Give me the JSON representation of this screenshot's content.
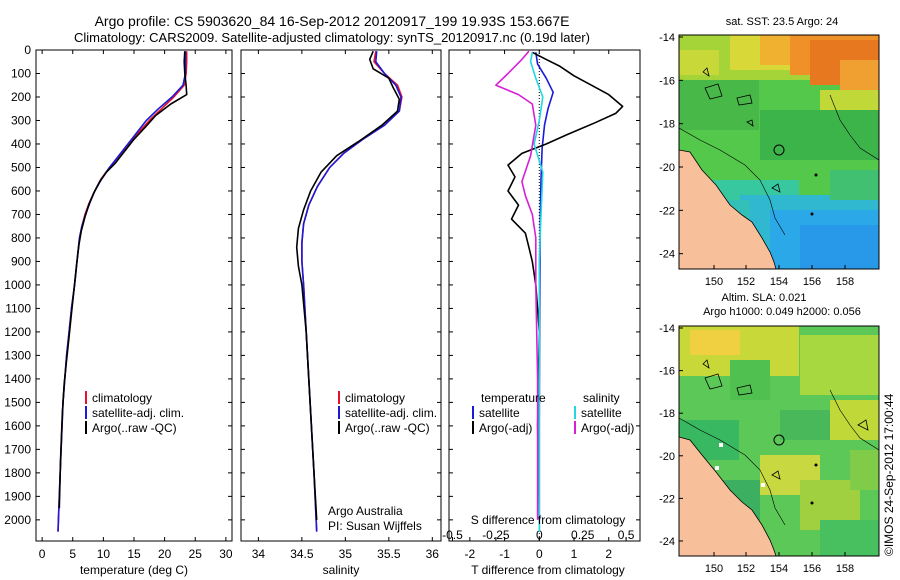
{
  "title_line1": "Argo profile: CS 5903620_84 16-Sep-2012 20120917_199 19.93S 153.667E",
  "title_line2": "Climatology: CARS2009. Satellite-adjusted climatology: synTS_20120917.nc (0.19d later)",
  "colors": {
    "clim": "#e8112d",
    "sat": "#1a1ad8",
    "argo": "#000000",
    "cyan": "#1fd8e0",
    "magenta": "#d81fd8",
    "land": "#f7c09a"
  },
  "chart_data": [
    {
      "type": "line",
      "id": "temperature",
      "xlabel": "temperature (deg C)",
      "ylabel": "",
      "xlim": [
        -1,
        31
      ],
      "ylim": [
        2090,
        0
      ],
      "xticks": [
        0,
        5,
        10,
        15,
        20,
        25,
        30
      ],
      "xtick_labels": [
        "0",
        "5",
        "10",
        "15",
        "20",
        "25",
        "30"
      ],
      "yticks": [
        0,
        100,
        200,
        300,
        400,
        500,
        600,
        700,
        800,
        900,
        1000,
        1100,
        1200,
        1300,
        1400,
        1500,
        1600,
        1700,
        1800,
        1900,
        2000
      ],
      "ytick_labels": [
        "0",
        "100",
        "200",
        "300",
        "400",
        "500",
        "600",
        "700",
        "800",
        "900",
        "1000",
        "1100",
        "1200",
        "1300",
        "1400",
        "1500",
        "1600",
        "1700",
        "1800",
        "1900",
        "2000"
      ],
      "legend": [
        "climatology",
        "satellite-adj. clim.",
        "Argo(..raw -QC)"
      ],
      "series": [
        {
          "name": "climatology",
          "color_key": "clim",
          "points": [
            [
              23.6,
              5
            ],
            [
              23.6,
              50
            ],
            [
              23.5,
              100
            ],
            [
              23.2,
              150
            ],
            [
              21.5,
              200
            ],
            [
              19.5,
              250
            ],
            [
              17.5,
              300
            ],
            [
              15.8,
              350
            ],
            [
              14.2,
              400
            ],
            [
              12.6,
              450
            ],
            [
              11.0,
              500
            ],
            [
              9.6,
              550
            ],
            [
              8.6,
              600
            ],
            [
              7.7,
              650
            ],
            [
              7.0,
              700
            ],
            [
              6.5,
              750
            ],
            [
              6.1,
              800
            ],
            [
              5.7,
              900
            ],
            [
              5.3,
              1000
            ],
            [
              4.8,
              1100
            ],
            [
              4.4,
              1200
            ],
            [
              4.0,
              1300
            ],
            [
              3.7,
              1400
            ],
            [
              3.4,
              1500
            ],
            [
              3.1,
              1700
            ],
            [
              2.8,
              1900
            ],
            [
              2.6,
              2050
            ]
          ]
        },
        {
          "name": "satellite-adj. clim.",
          "color_key": "sat",
          "points": [
            [
              23.4,
              5
            ],
            [
              23.4,
              50
            ],
            [
              23.4,
              100
            ],
            [
              23.0,
              150
            ],
            [
              21.2,
              200
            ],
            [
              19.0,
              250
            ],
            [
              17.0,
              300
            ],
            [
              15.5,
              350
            ],
            [
              14.0,
              400
            ],
            [
              12.5,
              450
            ],
            [
              11.0,
              500
            ],
            [
              9.7,
              550
            ],
            [
              8.6,
              600
            ],
            [
              7.8,
              650
            ],
            [
              7.1,
              700
            ],
            [
              6.5,
              750
            ],
            [
              6.1,
              800
            ],
            [
              5.7,
              900
            ],
            [
              5.3,
              1000
            ],
            [
              4.8,
              1100
            ],
            [
              4.4,
              1200
            ],
            [
              4.0,
              1300
            ],
            [
              3.7,
              1400
            ],
            [
              3.4,
              1500
            ],
            [
              3.1,
              1700
            ],
            [
              2.8,
              1900
            ],
            [
              2.6,
              2050
            ]
          ]
        },
        {
          "name": "Argo(..raw -QC)",
          "color_key": "argo",
          "points": [
            [
              23.3,
              5
            ],
            [
              23.2,
              50
            ],
            [
              23.3,
              100
            ],
            [
              23.5,
              150
            ],
            [
              23.6,
              190
            ],
            [
              21.0,
              230
            ],
            [
              18.5,
              280
            ],
            [
              16.8,
              330
            ],
            [
              15.0,
              380
            ],
            [
              13.5,
              430
            ],
            [
              12.0,
              480
            ],
            [
              10.5,
              520
            ],
            [
              9.4,
              560
            ],
            [
              8.4,
              610
            ],
            [
              7.6,
              660
            ],
            [
              7.0,
              710
            ],
            [
              6.4,
              770
            ],
            [
              6.0,
              830
            ],
            [
              5.6,
              920
            ],
            [
              5.2,
              1020
            ],
            [
              4.8,
              1120
            ],
            [
              4.4,
              1220
            ],
            [
              4.0,
              1320
            ],
            [
              3.6,
              1420
            ],
            [
              3.3,
              1550
            ],
            [
              3.0,
              1750
            ],
            [
              2.8,
              1950
            ]
          ]
        }
      ]
    },
    {
      "type": "line",
      "id": "salinity",
      "xlabel": "salinity",
      "ylabel": "",
      "xlim": [
        33.8,
        36.1
      ],
      "ylim": [
        2090,
        0
      ],
      "xticks": [
        34,
        34.5,
        35,
        35.5,
        36
      ],
      "xtick_labels": [
        "34",
        "34.5",
        "35",
        "35.5",
        "36"
      ],
      "legend": [
        "climatology",
        "satellite-adj. clim.",
        "Argo(..raw -QC)"
      ],
      "annotations": [
        "Argo Australia",
        "PI: Susan Wijffels"
      ],
      "series": [
        {
          "name": "climatology",
          "color_key": "clim",
          "points": [
            [
              35.35,
              5
            ],
            [
              35.33,
              50
            ],
            [
              35.45,
              100
            ],
            [
              35.6,
              150
            ],
            [
              35.65,
              200
            ],
            [
              35.62,
              260
            ],
            [
              35.45,
              320
            ],
            [
              35.2,
              380
            ],
            [
              34.98,
              440
            ],
            [
              34.82,
              500
            ],
            [
              34.68,
              580
            ],
            [
              34.58,
              660
            ],
            [
              34.52,
              740
            ],
            [
              34.5,
              820
            ],
            [
              34.5,
              900
            ],
            [
              34.52,
              1000
            ],
            [
              34.55,
              1200
            ],
            [
              34.58,
              1400
            ],
            [
              34.61,
              1600
            ],
            [
              34.64,
              1800
            ],
            [
              34.67,
              2050
            ]
          ]
        },
        {
          "name": "satellite-adj. clim.",
          "color_key": "sat",
          "points": [
            [
              35.36,
              5
            ],
            [
              35.35,
              50
            ],
            [
              35.45,
              100
            ],
            [
              35.58,
              150
            ],
            [
              35.64,
              200
            ],
            [
              35.62,
              260
            ],
            [
              35.45,
              320
            ],
            [
              35.2,
              380
            ],
            [
              34.98,
              440
            ],
            [
              34.82,
              500
            ],
            [
              34.68,
              580
            ],
            [
              34.58,
              660
            ],
            [
              34.52,
              740
            ],
            [
              34.5,
              820
            ],
            [
              34.5,
              900
            ],
            [
              34.52,
              1000
            ],
            [
              34.55,
              1200
            ],
            [
              34.58,
              1400
            ],
            [
              34.61,
              1600
            ],
            [
              34.64,
              1800
            ],
            [
              34.67,
              2050
            ]
          ]
        },
        {
          "name": "Argo(..raw -QC)",
          "color_key": "argo",
          "points": [
            [
              35.32,
              5
            ],
            [
              35.28,
              40
            ],
            [
              35.32,
              80
            ],
            [
              35.5,
              120
            ],
            [
              35.55,
              160
            ],
            [
              35.62,
              210
            ],
            [
              35.6,
              260
            ],
            [
              35.42,
              320
            ],
            [
              35.15,
              390
            ],
            [
              34.9,
              450
            ],
            [
              34.72,
              520
            ],
            [
              34.6,
              600
            ],
            [
              34.52,
              680
            ],
            [
              34.46,
              760
            ],
            [
              34.44,
              840
            ],
            [
              34.46,
              920
            ],
            [
              34.5,
              1000
            ],
            [
              34.55,
              1200
            ],
            [
              34.58,
              1400
            ],
            [
              34.61,
              1600
            ],
            [
              34.64,
              1800
            ],
            [
              34.67,
              2000
            ]
          ]
        }
      ]
    },
    {
      "type": "line",
      "id": "difference",
      "xlabel": "T difference from climatology",
      "xlabel_top": "S difference from climatology",
      "xlim": [
        -2.6,
        2.9
      ],
      "ylim": [
        2090,
        0
      ],
      "xticks": [
        -2,
        -1,
        0,
        1,
        2
      ],
      "xtick_labels": [
        "-2",
        "-1",
        "0",
        "1",
        "2"
      ],
      "xticks_s": [
        -0.5,
        -0.25,
        0,
        0.25,
        0.5
      ],
      "xtick_labels_s": [
        "-0.5",
        "-0.25",
        "0",
        "0.25",
        "0.5"
      ],
      "legend_headers": [
        "temperature",
        "salinity"
      ],
      "legend_left": [
        "satellite",
        "Argo(-adj)"
      ],
      "legend_right": [
        "satellite",
        "Argo(-adj)"
      ],
      "series": [
        {
          "name": "T satellite",
          "color_key": "sat",
          "points": [
            [
              -0.1,
              10
            ],
            [
              -0.05,
              60
            ],
            [
              0.2,
              120
            ],
            [
              0.4,
              180
            ],
            [
              0.25,
              250
            ],
            [
              0.15,
              320
            ],
            [
              0.08,
              420
            ],
            [
              0.05,
              550
            ],
            [
              0.03,
              700
            ],
            [
              0.02,
              900
            ],
            [
              0.01,
              1200
            ],
            [
              0,
              1600
            ],
            [
              0,
              2050
            ]
          ]
        },
        {
          "name": "T Argo(-adj)",
          "color_key": "argo",
          "points": [
            [
              -0.2,
              10
            ],
            [
              0.2,
              40
            ],
            [
              0.6,
              70
            ],
            [
              1.0,
              110
            ],
            [
              1.5,
              150
            ],
            [
              2.0,
              190
            ],
            [
              2.4,
              240
            ],
            [
              2.2,
              270
            ],
            [
              1.6,
              310
            ],
            [
              0.8,
              360
            ],
            [
              0.2,
              400
            ],
            [
              -0.5,
              440
            ],
            [
              -0.9,
              490
            ],
            [
              -0.7,
              540
            ],
            [
              -0.9,
              600
            ],
            [
              -0.6,
              660
            ],
            [
              -0.8,
              720
            ],
            [
              -0.4,
              780
            ],
            [
              -0.3,
              840
            ],
            [
              -0.2,
              900
            ],
            [
              -0.1,
              1000
            ],
            [
              0,
              1200
            ],
            [
              -0.05,
              1600
            ],
            [
              0,
              2000
            ]
          ]
        },
        {
          "name": "S satellite",
          "color_key": "cyan",
          "points": [
            [
              -0.04,
              10
            ],
            [
              -0.05,
              50
            ],
            [
              -0.02,
              120
            ],
            [
              0.02,
              200
            ],
            [
              0.0,
              300
            ],
            [
              -0.03,
              400
            ],
            [
              0.02,
              520
            ],
            [
              0.01,
              700
            ],
            [
              0,
              900
            ],
            [
              0,
              1400
            ],
            [
              0,
              2050
            ]
          ]
        },
        {
          "name": "S Argo(-adj)",
          "color_key": "magenta",
          "points": [
            [
              -0.06,
              5
            ],
            [
              -0.1,
              40
            ],
            [
              -0.18,
              100
            ],
            [
              -0.25,
              150
            ],
            [
              -0.12,
              190
            ],
            [
              -0.04,
              230
            ],
            [
              -0.02,
              320
            ],
            [
              -0.05,
              450
            ],
            [
              -0.1,
              560
            ],
            [
              -0.08,
              620
            ],
            [
              -0.04,
              700
            ],
            [
              -0.02,
              800
            ],
            [
              -0.02,
              1000
            ],
            [
              -0.01,
              1400
            ],
            [
              -0.01,
              2000
            ]
          ]
        }
      ]
    }
  ],
  "map1": {
    "title": "sat. SST: 23.5 Argo: 24",
    "ylabels": [
      "-14",
      "-16",
      "-18",
      "-20",
      "-22",
      "-24"
    ],
    "xlabels": [
      "150",
      "152",
      "154",
      "156",
      "158"
    ]
  },
  "map2": {
    "title1": "Altim. SLA: 0.021",
    "title2": "Argo h1000: 0.049 h2000: 0.056",
    "ylabels": [
      "-14",
      "-16",
      "-18",
      "-20",
      "-22",
      "-24"
    ],
    "xlabels": [
      "150",
      "152",
      "154",
      "156",
      "158"
    ]
  },
  "watermark": "©IMOS 24-Sep-2012 17:00:44"
}
